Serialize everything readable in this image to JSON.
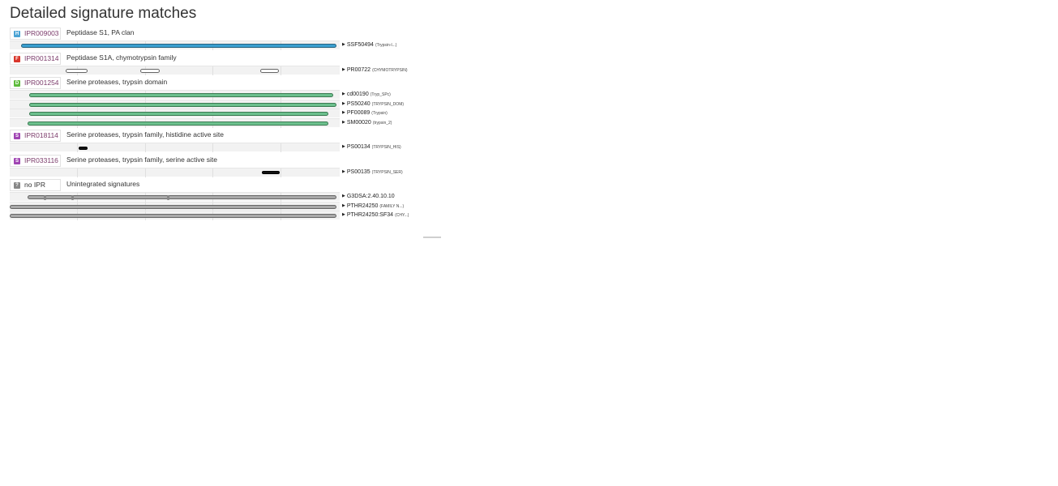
{
  "page": {
    "title": "Detailed signature matches"
  },
  "colors": {
    "homologous_superfamily": "#4aa3d4",
    "family": "#d9362b",
    "domain": "#5dbb3b",
    "site": "#a045b3",
    "unintegrated": "#888888"
  },
  "groups": [
    {
      "type": "homologous_superfamily",
      "badge": "H",
      "badge_icon": "homologous-superfamily-badge-icon",
      "accession": "IPR009003",
      "name": "Peptidase S1, PA clan",
      "rows": [
        {
          "accession": "SSF50494",
          "label": "(Trypsin-l...)",
          "style": "hom",
          "segments": [
            [
              0.035,
              0.99
            ]
          ]
        }
      ]
    },
    {
      "type": "family",
      "badge": "F",
      "badge_icon": "family-badge-icon",
      "accession": "IPR001314",
      "name": "Peptidase S1A, chymotrypsin family",
      "rows": [
        {
          "accession": "PR00722",
          "label": "(CHYMOTRYPSIN)",
          "style": "fam",
          "segments": [
            [
              0.17,
              0.235
            ],
            [
              0.395,
              0.455
            ],
            [
              0.76,
              0.815
            ]
          ]
        }
      ]
    },
    {
      "type": "domain",
      "badge": "D",
      "badge_icon": "domain-badge-icon",
      "accession": "IPR001254",
      "name": "Serine proteases, trypsin domain",
      "rows": [
        {
          "accession": "cd00190",
          "label": "(Tryp_SPc)",
          "style": "dom",
          "segments": [
            [
              0.06,
              0.98
            ]
          ]
        },
        {
          "accession": "PS50240",
          "label": "(TRYPSIN_DOM)",
          "style": "dom",
          "segments": [
            [
              0.06,
              0.99
            ]
          ]
        },
        {
          "accession": "PF00089",
          "label": "(Trypsin)",
          "style": "dom",
          "segments": [
            [
              0.06,
              0.965
            ]
          ]
        },
        {
          "accession": "SM00020",
          "label": "(trypsin_2)",
          "style": "dom",
          "segments": [
            [
              0.055,
              0.965
            ]
          ]
        }
      ]
    },
    {
      "type": "site",
      "badge": "S",
      "badge_icon": "site-badge-icon",
      "accession": "IPR018114",
      "name": "Serine proteases, trypsin family, histidine active site",
      "rows": [
        {
          "accession": "PS00134",
          "label": "(TRYPSIN_HIS)",
          "style": "site",
          "segments": [
            [
              0.21,
              0.237
            ]
          ]
        }
      ]
    },
    {
      "type": "site",
      "badge": "S",
      "badge_icon": "site-badge-icon",
      "accession": "IPR033116",
      "name": "Serine proteases, trypsin family, serine active site",
      "rows": [
        {
          "accession": "PS00135",
          "label": "(TRYPSIN_SER)",
          "style": "site",
          "segments": [
            [
              0.765,
              0.817
            ]
          ]
        }
      ]
    },
    {
      "type": "unintegrated",
      "badge": "?",
      "badge_icon": "unintegrated-badge-icon",
      "accession": "no IPR",
      "name": "Unintegrated signatures",
      "rows": [
        {
          "accession": "G3DSA:2.40.10.10",
          "label": "",
          "style": "unint",
          "segments": [
            [
              0.055,
              0.99
            ]
          ],
          "pins": [
            0.105,
            0.19,
            0.48
          ]
        },
        {
          "accession": "PTHR24250",
          "label": "(FAMILY N...)",
          "style": "unint",
          "segments": [
            [
              0.0,
              0.99
            ]
          ]
        },
        {
          "accession": "PTHR24250:SF34",
          "label": "(CHY...)",
          "style": "unint",
          "segments": [
            [
              0.0,
              0.99
            ]
          ]
        }
      ]
    }
  ]
}
